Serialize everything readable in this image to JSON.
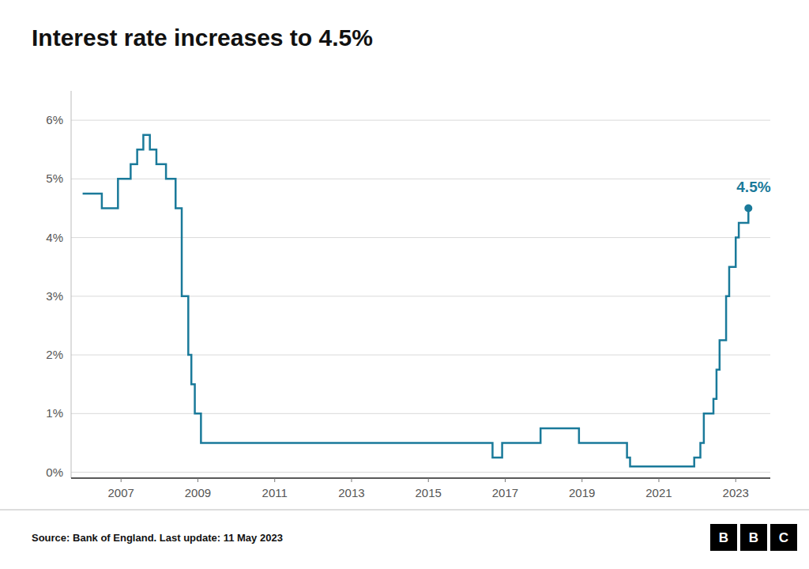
{
  "chart_data": {
    "type": "step",
    "title": "Interest rate increases to 4.5%",
    "source": "Source: Bank of England. Last update: 11 May 2023",
    "annotation": "4.5%",
    "logo": [
      "B",
      "B",
      "C"
    ],
    "color": "#1a7a9a",
    "grid": true,
    "xlim": [
      2005.7,
      2023.9
    ],
    "xticks": [
      2007,
      2009,
      2011,
      2013,
      2015,
      2017,
      2019,
      2021,
      2023
    ],
    "ylim": [
      -0.1,
      6.5
    ],
    "yticks": [
      {
        "value": 0,
        "label": "0%"
      },
      {
        "value": 1,
        "label": "1%"
      },
      {
        "value": 2,
        "label": "2%"
      },
      {
        "value": 3,
        "label": "3%"
      },
      {
        "value": 4,
        "label": "4%"
      },
      {
        "value": 5,
        "label": "5%"
      },
      {
        "value": 6,
        "label": "6%"
      }
    ],
    "x": [
      2006.0,
      2006.5,
      2006.83,
      2006.92,
      2007.25,
      2007.42,
      2007.58,
      2007.75,
      2007.92,
      2008.17,
      2008.42,
      2008.58,
      2008.75,
      2008.83,
      2008.92,
      2009.08,
      2016.5,
      2016.67,
      2016.83,
      2016.92,
      2017.83,
      2017.92,
      2018.83,
      2018.92,
      2019.75,
      2020.17,
      2020.25,
      2021.92,
      2021.92,
      2022.08,
      2022.17,
      2022.42,
      2022.5,
      2022.58,
      2022.67,
      2022.75,
      2022.83,
      2022.92,
      2023.0,
      2023.08,
      2023.33
    ],
    "values": [
      4.75,
      4.5,
      4.5,
      5.0,
      5.25,
      5.5,
      5.75,
      5.5,
      5.25,
      5.0,
      4.5,
      3.0,
      2.0,
      1.5,
      1.0,
      0.5,
      0.5,
      0.25,
      0.25,
      0.5,
      0.5,
      0.75,
      0.75,
      0.5,
      0.5,
      0.25,
      0.1,
      0.1,
      0.25,
      0.5,
      1.0,
      1.25,
      1.75,
      2.25,
      2.25,
      3.0,
      3.5,
      3.5,
      4.0,
      4.25,
      4.5
    ]
  }
}
